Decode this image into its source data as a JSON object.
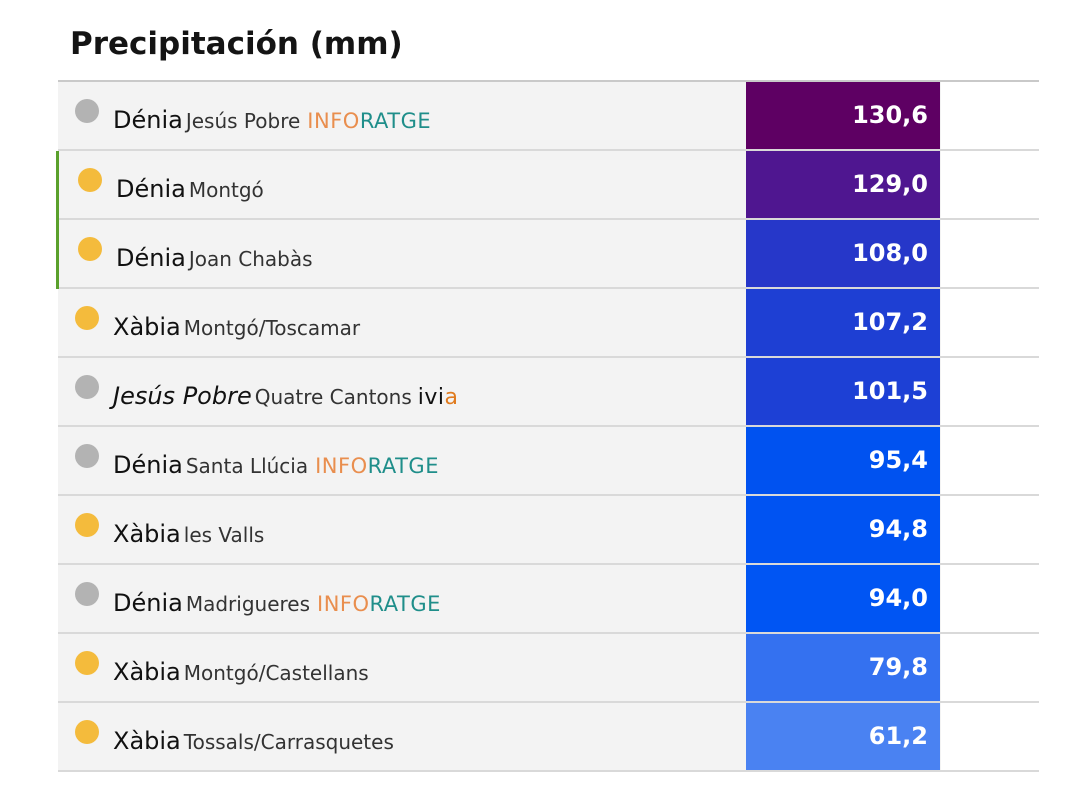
{
  "header": {
    "title": "Precipitación (mm)"
  },
  "rows": [
    {
      "town": "Dénia",
      "town_italic": false,
      "station": "Jesús Pobre",
      "brand_a": "INFO",
      "brand_b": "RATGE",
      "brand_type": "inforatge",
      "value": "130,6",
      "dot": "gray",
      "value_color": "#5e0063",
      "active": false
    },
    {
      "town": "Dénia",
      "town_italic": false,
      "station": "Montgó",
      "brand_a": "",
      "brand_b": "",
      "brand_type": "none",
      "value": "129,0",
      "dot": "orange",
      "value_color": "#4f1690",
      "active": true
    },
    {
      "town": "Dénia",
      "town_italic": false,
      "station": "Joan Chabàs",
      "brand_a": "",
      "brand_b": "",
      "brand_type": "none",
      "value": "108,0",
      "dot": "orange",
      "value_color": "#2637c9",
      "active": true
    },
    {
      "town": "Xàbia",
      "town_italic": false,
      "station": "Montgó/Toscamar",
      "brand_a": "",
      "brand_b": "",
      "brand_type": "none",
      "value": "107,2",
      "dot": "orange",
      "value_color": "#1e3fd3",
      "active": false
    },
    {
      "town": "Jesús Pobre",
      "town_italic": true,
      "station": "Quatre Cantons",
      "brand_a": "ivi",
      "brand_b": "a",
      "brand_type": "ivia",
      "value": "101,5",
      "dot": "gray",
      "value_color": "#1d40d5",
      "active": false
    },
    {
      "town": "Dénia",
      "town_italic": false,
      "station": "Santa Llúcia",
      "brand_a": "INFO",
      "brand_b": "RATGE",
      "brand_type": "inforatge",
      "value": "95,4",
      "dot": "gray",
      "value_color": "#0052f0",
      "active": false
    },
    {
      "town": "Xàbia",
      "town_italic": false,
      "station": "les Valls",
      "brand_a": "",
      "brand_b": "",
      "brand_type": "none",
      "value": "94,8",
      "dot": "orange",
      "value_color": "#0053f2",
      "active": false
    },
    {
      "town": "Dénia",
      "town_italic": false,
      "station": "Madrigueres",
      "brand_a": "INFO",
      "brand_b": "RATGE",
      "brand_type": "inforatge",
      "value": "94,0",
      "dot": "gray",
      "value_color": "#0055f3",
      "active": false
    },
    {
      "town": "Xàbia",
      "town_italic": false,
      "station": "Montgó/Castellans",
      "brand_a": "",
      "brand_b": "",
      "brand_type": "none",
      "value": "79,8",
      "dot": "orange",
      "value_color": "#3471f0",
      "active": false
    },
    {
      "town": "Xàbia",
      "town_italic": false,
      "station": "Tossals/Carrasquetes",
      "brand_a": "",
      "brand_b": "",
      "brand_type": "none",
      "value": "61,2",
      "dot": "orange",
      "value_color": "#4a82f2",
      "active": false
    }
  ]
}
